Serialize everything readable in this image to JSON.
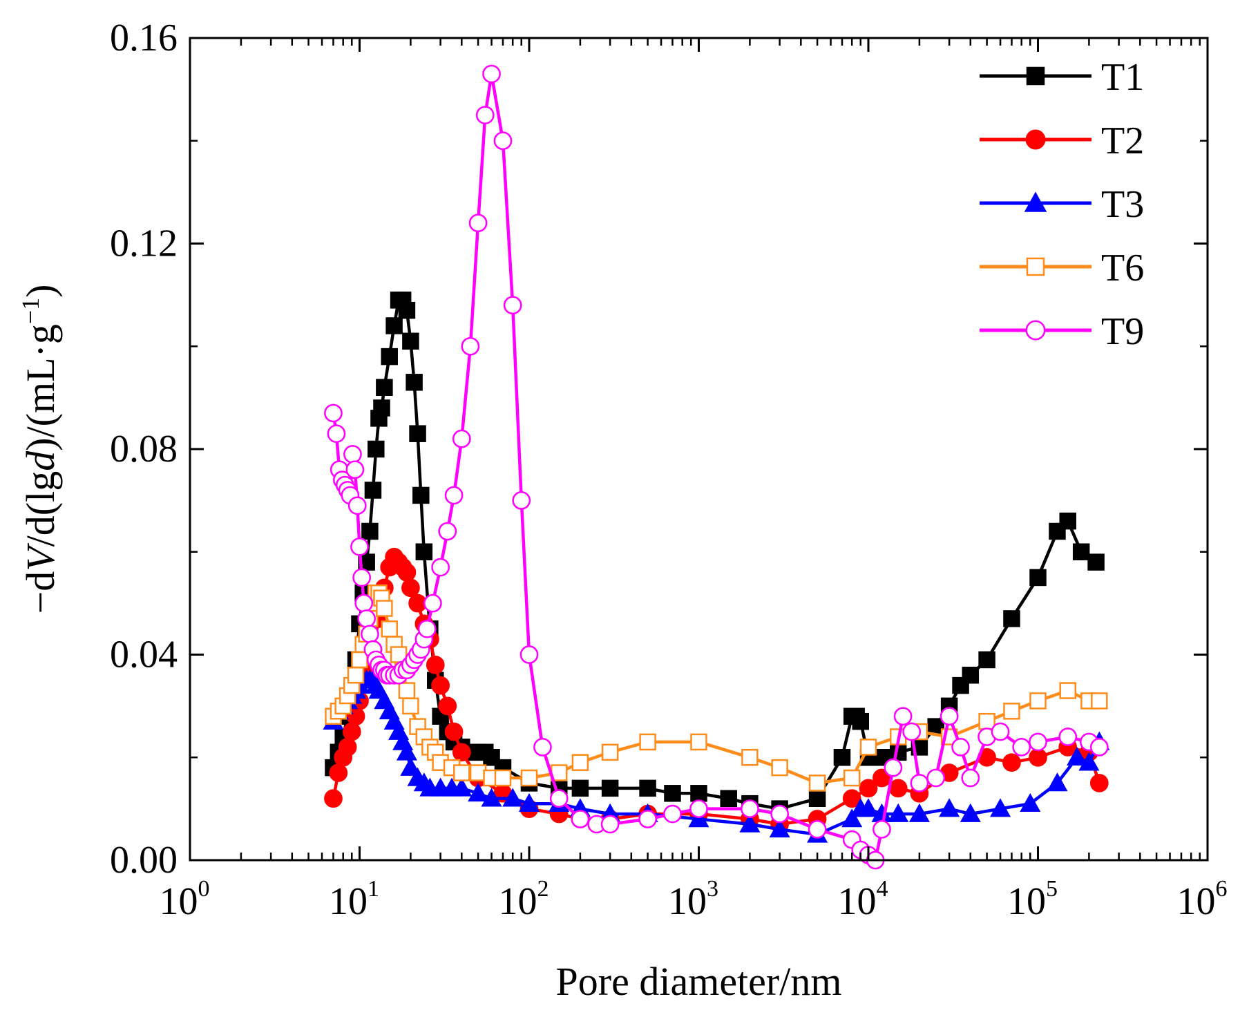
{
  "chart_data": {
    "type": "line",
    "x_scale": "log",
    "xlabel": "Pore diameter/nm",
    "ylabel_parts": {
      "minus": "−",
      "d1": "d",
      "V": "V",
      "mid": "/d(lg",
      "dd": "d",
      "units": ")/(mL·g",
      "exp": "−1",
      "close": ")"
    },
    "xlim": [
      1,
      1000000
    ],
    "ylim": [
      0,
      0.16
    ],
    "x_ticks": [
      {
        "base": "10",
        "exp": "0",
        "value": 1
      },
      {
        "base": "10",
        "exp": "1",
        "value": 10
      },
      {
        "base": "10",
        "exp": "2",
        "value": 100
      },
      {
        "base": "10",
        "exp": "3",
        "value": 1000
      },
      {
        "base": "10",
        "exp": "4",
        "value": 10000
      },
      {
        "base": "10",
        "exp": "5",
        "value": 100000
      },
      {
        "base": "10",
        "exp": "6",
        "value": 1000000
      }
    ],
    "y_ticks": [
      {
        "label": "0.00",
        "value": 0
      },
      {
        "label": "0.04",
        "value": 0.04
      },
      {
        "label": "0.08",
        "value": 0.08
      },
      {
        "label": "0.12",
        "value": 0.12
      },
      {
        "label": "0.16",
        "value": 0.16
      }
    ],
    "legend_position": "top-right",
    "series": [
      {
        "name": "T1",
        "color": "#000000",
        "marker": "square-filled",
        "x": [
          7,
          7.5,
          8,
          8.5,
          9,
          9.5,
          10,
          10.5,
          11,
          11.5,
          12,
          12.5,
          13,
          13.5,
          14,
          15,
          16,
          17,
          18,
          19,
          20,
          21,
          22,
          23,
          24,
          26,
          28,
          30,
          33,
          36,
          40,
          45,
          50,
          55,
          60,
          70,
          100,
          150,
          200,
          300,
          500,
          700,
          1000,
          1500,
          2000,
          3000,
          5000,
          7000,
          8000,
          8500,
          9000,
          10000,
          12000,
          15000,
          20000,
          25000,
          30000,
          35000,
          40000,
          50000,
          70000,
          100000,
          130000,
          150000,
          180000,
          220000
        ],
        "y": [
          0.018,
          0.021,
          0.024,
          0.028,
          0.033,
          0.039,
          0.046,
          0.052,
          0.058,
          0.064,
          0.072,
          0.08,
          0.086,
          0.088,
          0.092,
          0.098,
          0.104,
          0.109,
          0.109,
          0.107,
          0.101,
          0.093,
          0.083,
          0.071,
          0.06,
          0.045,
          0.035,
          0.028,
          0.025,
          0.023,
          0.022,
          0.021,
          0.021,
          0.021,
          0.02,
          0.018,
          0.015,
          0.014,
          0.014,
          0.014,
          0.014,
          0.013,
          0.013,
          0.012,
          0.011,
          0.01,
          0.012,
          0.02,
          0.028,
          0.028,
          0.027,
          0.02,
          0.02,
          0.021,
          0.022,
          0.026,
          0.03,
          0.034,
          0.036,
          0.039,
          0.047,
          0.055,
          0.064,
          0.066,
          0.06,
          0.058
        ]
      },
      {
        "name": "T2",
        "color": "#ff0000",
        "marker": "circle-filled",
        "x": [
          7,
          7.5,
          8,
          8.5,
          9,
          9.5,
          10,
          11,
          12,
          13,
          14,
          15,
          16,
          17,
          18,
          19,
          20,
          22,
          24,
          26,
          28,
          30,
          33,
          36,
          40,
          50,
          70,
          100,
          150,
          200,
          300,
          500,
          1000,
          2000,
          3000,
          5000,
          8000,
          10000,
          12000,
          15000,
          20000,
          30000,
          50000,
          70000,
          100000,
          150000,
          200000,
          230000
        ],
        "y": [
          0.012,
          0.017,
          0.02,
          0.022,
          0.025,
          0.028,
          0.031,
          0.036,
          0.041,
          0.047,
          0.053,
          0.057,
          0.059,
          0.058,
          0.057,
          0.056,
          0.053,
          0.05,
          0.046,
          0.043,
          0.038,
          0.034,
          0.03,
          0.025,
          0.021,
          0.016,
          0.013,
          0.01,
          0.009,
          0.008,
          0.008,
          0.009,
          0.009,
          0.008,
          0.007,
          0.008,
          0.012,
          0.014,
          0.016,
          0.014,
          0.013,
          0.017,
          0.02,
          0.019,
          0.02,
          0.022,
          0.021,
          0.015
        ]
      },
      {
        "name": "T3",
        "color": "#0000ff",
        "marker": "triangle-filled",
        "x": [
          7,
          7.5,
          8,
          8.5,
          9,
          9.5,
          10,
          10.5,
          11,
          11.5,
          12,
          12.5,
          13,
          14,
          15,
          16,
          17,
          18,
          19,
          20,
          22,
          24,
          26,
          30,
          35,
          40,
          50,
          60,
          80,
          100,
          150,
          200,
          300,
          500,
          1000,
          2000,
          3000,
          5000,
          8000,
          9000,
          10000,
          12000,
          15000,
          20000,
          30000,
          40000,
          60000,
          90000,
          130000,
          170000,
          200000,
          230000
        ],
        "y": [
          0.027,
          0.029,
          0.03,
          0.031,
          0.032,
          0.033,
          0.034,
          0.035,
          0.035,
          0.035,
          0.035,
          0.034,
          0.033,
          0.031,
          0.029,
          0.027,
          0.025,
          0.023,
          0.021,
          0.018,
          0.016,
          0.015,
          0.014,
          0.014,
          0.014,
          0.014,
          0.013,
          0.012,
          0.012,
          0.011,
          0.011,
          0.01,
          0.009,
          0.009,
          0.008,
          0.007,
          0.006,
          0.005,
          0.008,
          0.01,
          0.01,
          0.009,
          0.009,
          0.009,
          0.01,
          0.009,
          0.01,
          0.011,
          0.015,
          0.02,
          0.019,
          0.023
        ]
      },
      {
        "name": "T6",
        "color": "#ff8c1a",
        "marker": "square-open",
        "x": [
          7,
          7.5,
          8,
          8.5,
          9,
          9.5,
          10,
          10.5,
          11,
          11.5,
          12,
          12.5,
          13,
          13.5,
          14,
          15,
          16,
          17,
          18,
          19,
          20,
          22,
          24,
          26,
          28,
          30,
          35,
          40,
          50,
          60,
          70,
          100,
          150,
          200,
          300,
          500,
          1000,
          2000,
          3000,
          5000,
          8000,
          10000,
          15000,
          20000,
          30000,
          50000,
          70000,
          100000,
          150000,
          200000,
          230000
        ],
        "y": [
          0.028,
          0.029,
          0.03,
          0.032,
          0.034,
          0.036,
          0.039,
          0.042,
          0.044,
          0.047,
          0.05,
          0.052,
          0.052,
          0.051,
          0.049,
          0.045,
          0.042,
          0.04,
          0.037,
          0.033,
          0.03,
          0.026,
          0.024,
          0.022,
          0.021,
          0.019,
          0.018,
          0.017,
          0.017,
          0.016,
          0.016,
          0.016,
          0.017,
          0.019,
          0.021,
          0.023,
          0.023,
          0.02,
          0.018,
          0.015,
          0.016,
          0.022,
          0.024,
          0.025,
          0.024,
          0.027,
          0.029,
          0.031,
          0.033,
          0.031,
          0.031
        ]
      },
      {
        "name": "T9",
        "color": "#ff00ff",
        "marker": "circle-open",
        "x": [
          7,
          7.3,
          7.6,
          7.9,
          8.2,
          8.5,
          8.8,
          9.1,
          9.4,
          9.7,
          10,
          10.3,
          10.6,
          11,
          11.5,
          12,
          12.5,
          13,
          13.5,
          14,
          14.5,
          15,
          16,
          17,
          18,
          19,
          20,
          21,
          22,
          23,
          24,
          25,
          27,
          30,
          33,
          36,
          40,
          45,
          50,
          55,
          60,
          70,
          80,
          90,
          100,
          120,
          150,
          200,
          250,
          300,
          500,
          700,
          1000,
          2000,
          3000,
          5000,
          8000,
          9000,
          10000,
          11000,
          12000,
          14000,
          16000,
          18000,
          20000,
          25000,
          30000,
          35000,
          40000,
          50000,
          60000,
          80000,
          100000,
          150000,
          200000,
          230000
        ],
        "y": [
          0.087,
          0.083,
          0.076,
          0.074,
          0.073,
          0.072,
          0.071,
          0.079,
          0.076,
          0.069,
          0.061,
          0.055,
          0.05,
          0.047,
          0.044,
          0.041,
          0.039,
          0.038,
          0.037,
          0.037,
          0.036,
          0.036,
          0.036,
          0.036,
          0.037,
          0.037,
          0.038,
          0.039,
          0.04,
          0.041,
          0.043,
          0.045,
          0.05,
          0.057,
          0.064,
          0.071,
          0.082,
          0.1,
          0.124,
          0.145,
          0.153,
          0.14,
          0.108,
          0.07,
          0.04,
          0.022,
          0.012,
          0.008,
          0.007,
          0.007,
          0.008,
          0.009,
          0.01,
          0.01,
          0.009,
          0.006,
          0.004,
          0.002,
          0.001,
          0.0,
          0.006,
          0.018,
          0.028,
          0.025,
          0.015,
          0.016,
          0.028,
          0.022,
          0.016,
          0.024,
          0.025,
          0.022,
          0.023,
          0.024,
          0.023,
          0.022
        ]
      }
    ]
  }
}
